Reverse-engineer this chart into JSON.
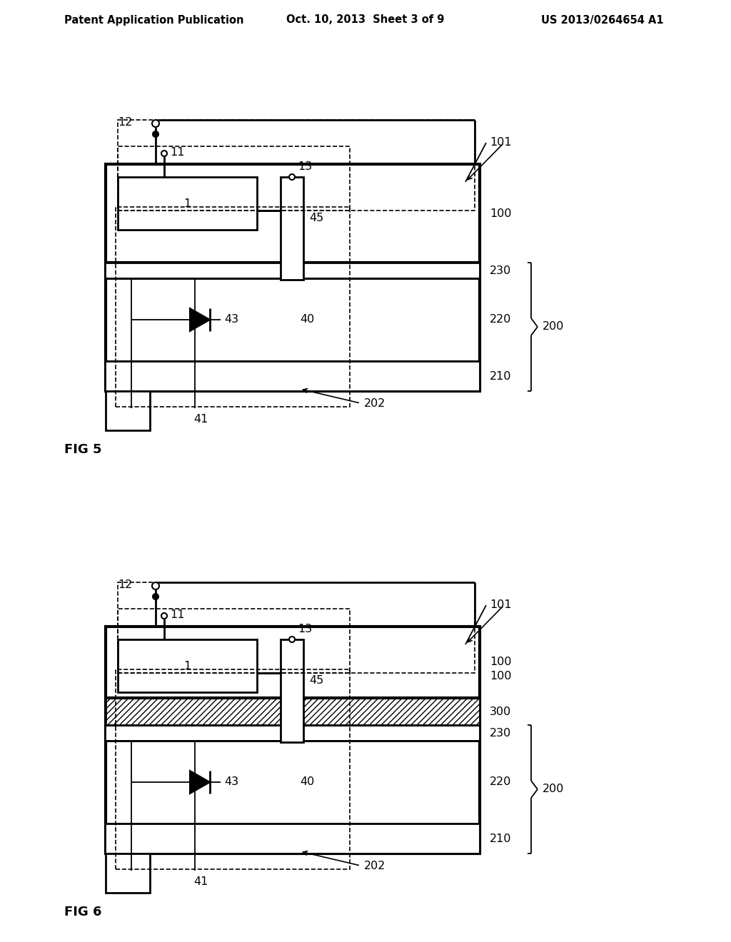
{
  "header_left": "Patent Application Publication",
  "header_center": "Oct. 10, 2013  Sheet 3 of 9",
  "header_right": "US 2013/0264654 A1",
  "fig5_label": "FIG 5",
  "fig6_label": "FIG 6",
  "background": "#ffffff",
  "line_color": "#000000"
}
